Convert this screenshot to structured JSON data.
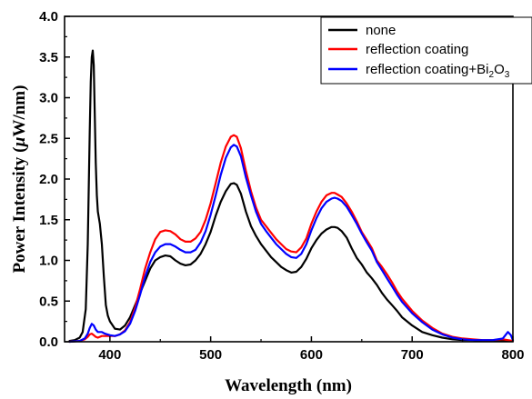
{
  "chart_data": {
    "type": "line",
    "title": "",
    "xlabel": "Wavelength (nm)",
    "ylabel_parts": [
      "Power Intensity (",
      "µ",
      "W/nm)"
    ],
    "xlim": [
      355,
      800
    ],
    "ylim": [
      0.0,
      4.0
    ],
    "xticks": [
      400,
      500,
      600,
      700,
      800
    ],
    "xtick_labels": [
      "400",
      "500",
      "600",
      "700",
      "800"
    ],
    "yticks": [
      0.0,
      0.5,
      1.0,
      1.5,
      2.0,
      2.5,
      3.0,
      3.5,
      4.0
    ],
    "ytick_labels": [
      "0.0",
      "0.5",
      "1.0",
      "1.5",
      "2.0",
      "2.5",
      "3.0",
      "3.5",
      "4.0"
    ],
    "grid": false,
    "legend_position": "top-right",
    "legend": {
      "none": "none",
      "reflection": "reflection coating",
      "bi_prefix": "reflection coating+Bi",
      "bi_sub1": "2",
      "bi_mid": "O",
      "bi_sub2": "3"
    },
    "series": [
      {
        "name": "none",
        "color": "#000000",
        "x": [
          360,
          365,
          370,
          373,
          376,
          378,
          380,
          381,
          382,
          383,
          384,
          385,
          386,
          387,
          388,
          390,
          392,
          394,
          396,
          398,
          400,
          405,
          410,
          415,
          420,
          425,
          430,
          435,
          440,
          445,
          450,
          455,
          460,
          465,
          470,
          475,
          480,
          485,
          490,
          495,
          500,
          505,
          510,
          515,
          520,
          523,
          526,
          530,
          535,
          540,
          545,
          550,
          555,
          560,
          565,
          570,
          575,
          580,
          585,
          590,
          595,
          600,
          605,
          610,
          615,
          620,
          623,
          626,
          630,
          635,
          640,
          645,
          650,
          655,
          660,
          665,
          670,
          675,
          680,
          685,
          690,
          700,
          710,
          720,
          730,
          740,
          750,
          760,
          770,
          780,
          790,
          800
        ],
        "y": [
          0.01,
          0.02,
          0.05,
          0.12,
          0.4,
          1.2,
          2.6,
          3.2,
          3.5,
          3.58,
          3.4,
          2.8,
          2.2,
          1.8,
          1.6,
          1.45,
          1.2,
          0.8,
          0.45,
          0.32,
          0.25,
          0.16,
          0.15,
          0.2,
          0.3,
          0.45,
          0.6,
          0.75,
          0.9,
          1.0,
          1.04,
          1.06,
          1.05,
          1.0,
          0.96,
          0.94,
          0.95,
          1.0,
          1.08,
          1.2,
          1.35,
          1.55,
          1.72,
          1.85,
          1.94,
          1.95,
          1.93,
          1.82,
          1.6,
          1.42,
          1.3,
          1.2,
          1.12,
          1.04,
          0.98,
          0.92,
          0.88,
          0.85,
          0.86,
          0.92,
          1.02,
          1.15,
          1.25,
          1.33,
          1.38,
          1.41,
          1.41,
          1.4,
          1.36,
          1.28,
          1.15,
          1.03,
          0.95,
          0.85,
          0.78,
          0.7,
          0.6,
          0.52,
          0.45,
          0.38,
          0.3,
          0.2,
          0.12,
          0.08,
          0.05,
          0.03,
          0.02,
          0.02,
          0.01,
          0.01,
          0.01,
          0.01
        ]
      },
      {
        "name": "reflection coating",
        "color": "#ff0000",
        "x": [
          360,
          370,
          375,
          378,
          380,
          382,
          384,
          386,
          388,
          390,
          392,
          395,
          400,
          405,
          410,
          415,
          420,
          425,
          430,
          435,
          440,
          445,
          450,
          455,
          460,
          465,
          470,
          475,
          480,
          485,
          490,
          495,
          500,
          505,
          510,
          515,
          520,
          523,
          526,
          530,
          535,
          540,
          545,
          550,
          555,
          560,
          565,
          570,
          575,
          580,
          585,
          590,
          595,
          600,
          605,
          610,
          615,
          620,
          623,
          626,
          630,
          635,
          640,
          645,
          650,
          655,
          660,
          665,
          670,
          675,
          680,
          685,
          690,
          700,
          710,
          720,
          730,
          740,
          750,
          760,
          770,
          780,
          790,
          800
        ],
        "y": [
          0.0,
          0.01,
          0.03,
          0.06,
          0.09,
          0.1,
          0.08,
          0.06,
          0.05,
          0.06,
          0.07,
          0.07,
          0.07,
          0.07,
          0.09,
          0.14,
          0.24,
          0.42,
          0.65,
          0.9,
          1.1,
          1.26,
          1.35,
          1.37,
          1.36,
          1.32,
          1.26,
          1.23,
          1.23,
          1.27,
          1.35,
          1.5,
          1.7,
          1.95,
          2.2,
          2.4,
          2.52,
          2.54,
          2.52,
          2.38,
          2.1,
          1.85,
          1.65,
          1.5,
          1.42,
          1.34,
          1.26,
          1.2,
          1.14,
          1.11,
          1.1,
          1.16,
          1.27,
          1.45,
          1.6,
          1.72,
          1.8,
          1.83,
          1.83,
          1.81,
          1.78,
          1.7,
          1.6,
          1.48,
          1.35,
          1.25,
          1.15,
          1.0,
          0.92,
          0.83,
          0.73,
          0.62,
          0.53,
          0.38,
          0.26,
          0.17,
          0.1,
          0.06,
          0.04,
          0.03,
          0.02,
          0.02,
          0.03,
          0.01
        ]
      },
      {
        "name": "reflection coating+Bi2O3",
        "color": "#0000ff",
        "x": [
          360,
          370,
          375,
          378,
          380,
          382,
          384,
          386,
          388,
          390,
          392,
          395,
          400,
          405,
          410,
          415,
          420,
          425,
          430,
          435,
          440,
          445,
          450,
          455,
          460,
          465,
          470,
          475,
          480,
          485,
          490,
          495,
          500,
          505,
          510,
          515,
          520,
          523,
          526,
          530,
          535,
          540,
          545,
          550,
          555,
          560,
          565,
          570,
          575,
          580,
          585,
          590,
          595,
          600,
          605,
          610,
          615,
          620,
          623,
          626,
          630,
          635,
          640,
          645,
          650,
          655,
          660,
          665,
          670,
          675,
          680,
          685,
          690,
          700,
          710,
          720,
          730,
          740,
          750,
          760,
          770,
          780,
          790,
          795,
          798,
          800
        ],
        "y": [
          0.0,
          0.01,
          0.04,
          0.1,
          0.17,
          0.22,
          0.2,
          0.15,
          0.12,
          0.12,
          0.12,
          0.1,
          0.08,
          0.07,
          0.09,
          0.13,
          0.22,
          0.38,
          0.58,
          0.8,
          0.98,
          1.1,
          1.17,
          1.2,
          1.2,
          1.17,
          1.13,
          1.1,
          1.1,
          1.13,
          1.22,
          1.36,
          1.56,
          1.8,
          2.05,
          2.26,
          2.39,
          2.42,
          2.4,
          2.28,
          2.02,
          1.8,
          1.6,
          1.45,
          1.36,
          1.28,
          1.2,
          1.14,
          1.08,
          1.04,
          1.03,
          1.08,
          1.2,
          1.37,
          1.52,
          1.64,
          1.72,
          1.76,
          1.77,
          1.76,
          1.73,
          1.66,
          1.56,
          1.45,
          1.33,
          1.22,
          1.12,
          0.98,
          0.88,
          0.78,
          0.68,
          0.58,
          0.49,
          0.35,
          0.24,
          0.15,
          0.09,
          0.05,
          0.03,
          0.02,
          0.02,
          0.02,
          0.04,
          0.12,
          0.08,
          0.02
        ]
      }
    ]
  }
}
